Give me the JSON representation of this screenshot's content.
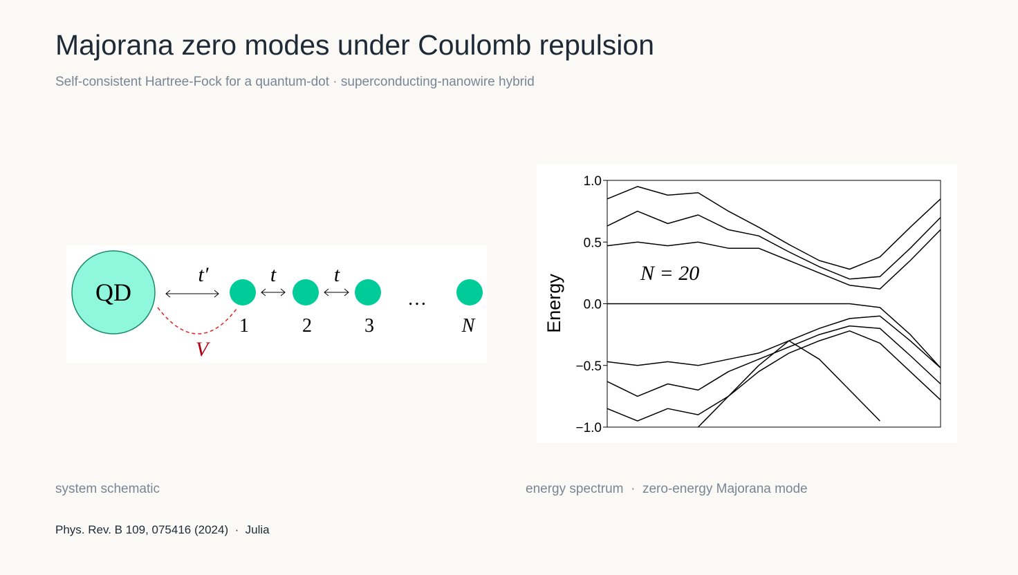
{
  "header": {
    "title": "Majorana zero modes under Coulomb repulsion",
    "subtitle": "Self-consistent Hartree-Fock for a quantum-dot · superconducting-nanowire hybrid"
  },
  "schematic": {
    "dot": "QD",
    "coupling": "t′",
    "hops": [
      "t",
      "t"
    ],
    "sites": [
      "1",
      "2",
      "3",
      "…",
      "N"
    ],
    "interaction": "V"
  },
  "chart_data": {
    "type": "line",
    "ylabel": "Energy",
    "annotation": "N = 20",
    "categories": [
      null,
      null,
      null,
      null,
      null,
      null,
      null,
      null,
      null,
      null,
      null,
      null
    ],
    "ylim": [
      -1.0,
      1.0
    ],
    "yticks": [
      {
        "value": -1.0,
        "label": "−1.0"
      },
      {
        "value": -0.5,
        "label": "−0.5"
      },
      {
        "value": 0.0,
        "label": "0.0"
      },
      {
        "value": 0.5,
        "label": "0.5"
      },
      {
        "value": 1.0,
        "label": "1.0"
      }
    ],
    "series": [
      {
        "color": "#000000",
        "values": [
          0,
          0,
          0,
          0,
          0,
          0,
          0,
          0,
          0,
          -0.03,
          -0.25,
          -0.52
        ]
      },
      {
        "color": "#000000",
        "values": [
          0.47,
          0.5,
          0.47,
          0.5,
          0.45,
          0.45,
          0.35,
          0.25,
          0.15,
          0.12,
          0.35,
          0.6
        ]
      },
      {
        "color": "#000000",
        "values": [
          0.63,
          0.75,
          0.65,
          0.72,
          0.6,
          0.55,
          0.42,
          0.3,
          0.2,
          0.22,
          0.45,
          0.7
        ]
      },
      {
        "color": "#000000",
        "values": [
          0.85,
          0.95,
          0.88,
          0.9,
          0.75,
          0.62,
          0.48,
          0.35,
          0.28,
          0.38,
          0.62,
          0.85
        ]
      },
      {
        "color": "#000000",
        "values": [
          -0.47,
          -0.5,
          -0.47,
          -0.5,
          -0.45,
          -0.4,
          -0.3,
          -0.2,
          -0.12,
          -0.1,
          -0.3,
          -0.52
        ]
      },
      {
        "color": "#000000",
        "values": [
          -0.63,
          -0.75,
          -0.65,
          -0.7,
          -0.55,
          -0.45,
          -0.35,
          -0.25,
          -0.18,
          -0.2,
          -0.42,
          -0.65
        ]
      },
      {
        "color": "#000000",
        "values": [
          -0.85,
          -0.95,
          -0.85,
          -0.9,
          -0.75,
          -0.55,
          -0.4,
          -0.3,
          -0.22,
          -0.32,
          -0.55,
          -0.78
        ]
      },
      {
        "color": "#000000",
        "values": [
          null,
          null,
          null,
          -1.0,
          -0.75,
          -0.5,
          -0.3,
          -0.45,
          -0.7,
          -0.95,
          null,
          null
        ]
      }
    ]
  },
  "captions": {
    "left": "system schematic",
    "right": "energy spectrum  ·  zero-energy Majorana mode"
  },
  "footer": "Phys. Rev. B 109, 075416 (2024)  ·  Julia"
}
